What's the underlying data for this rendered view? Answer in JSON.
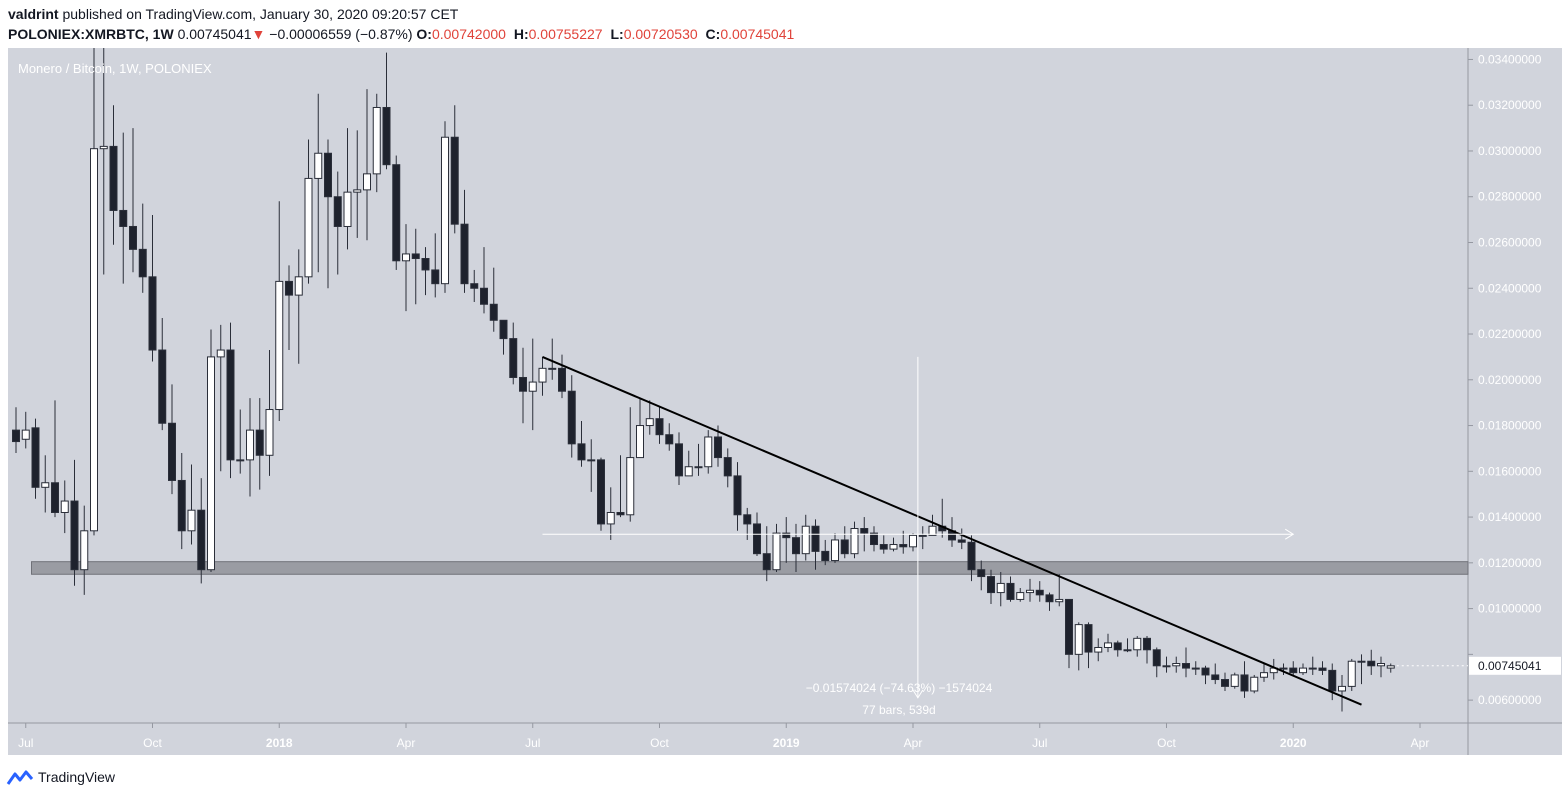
{
  "header": {
    "author": "valdrint",
    "published_text": "published on TradingView.com, January 30, 2020 09:20:57 CET",
    "symbol": "POLONIEX:XMRBTC,",
    "interval": "1W",
    "last_price": "0.00745041",
    "change_arrow": "▼",
    "change": "−0.00006559 (−0.87%)",
    "open_label": "O:",
    "open_value": "0.00742000",
    "high_label": "H:",
    "high_value": "0.00755227",
    "low_label": "L:",
    "low_value": "0.00720530",
    "close_label": "C:",
    "close_value": "0.00745041"
  },
  "footer": {
    "brand": "TradingView"
  },
  "colors": {
    "background": "#d1d4dc",
    "bull_body": "#ffffff",
    "bear_body": "#1e222d",
    "wick": "#2a2e39",
    "support_zone": "#9a9ca3",
    "trendline": "#000000",
    "price_tag": "#ffffff",
    "negative": "#e0433a"
  },
  "chart_data": {
    "type": "candlestick",
    "title": "Monero / Bitcoin, 1W, POLONIEX",
    "ylim": [
      0.005,
      0.0345
    ],
    "y_ticks": [
      0.034,
      0.032,
      0.03,
      0.028,
      0.026,
      0.024,
      0.022,
      0.02,
      0.018,
      0.016,
      0.014,
      0.012,
      0.01,
      0.008,
      0.006
    ],
    "y_tick_labels": [
      "0.03400000",
      "0.03200000",
      "0.03000000",
      "0.02800000",
      "0.02600000",
      "0.02400000",
      "0.02200000",
      "0.02000000",
      "0.01800000",
      "0.01600000",
      "0.01400000",
      "0.01200000",
      "0.01000000",
      "",
      "0.00600000"
    ],
    "x_tick_labels": [
      {
        "label": "Jul",
        "week": 1
      },
      {
        "label": "Oct",
        "week": 14
      },
      {
        "label": "2018",
        "week": 27
      },
      {
        "label": "Apr",
        "week": 40
      },
      {
        "label": "Jul",
        "week": 53
      },
      {
        "label": "Oct",
        "week": 66
      },
      {
        "label": "2019",
        "week": 79
      },
      {
        "label": "Apr",
        "week": 92
      },
      {
        "label": "Jul",
        "week": 105
      },
      {
        "label": "Oct",
        "week": 118
      },
      {
        "label": "2020",
        "week": 131
      },
      {
        "label": "Apr",
        "week": 144
      }
    ],
    "candles": [
      [
        0.0178,
        0.0173,
        0.0188,
        0.0168
      ],
      [
        0.0174,
        0.0178,
        0.0186,
        0.017
      ],
      [
        0.0179,
        0.0153,
        0.0183,
        0.0148
      ],
      [
        0.0153,
        0.0155,
        0.0167,
        0.0142
      ],
      [
        0.0155,
        0.0142,
        0.0191,
        0.014
      ],
      [
        0.0142,
        0.0147,
        0.0156,
        0.0133
      ],
      [
        0.0147,
        0.0117,
        0.0165,
        0.011
      ],
      [
        0.0117,
        0.0134,
        0.0145,
        0.0106
      ],
      [
        0.0134,
        0.0301,
        0.0345,
        0.0132
      ],
      [
        0.0301,
        0.0302,
        0.0345,
        0.0246
      ],
      [
        0.0302,
        0.0274,
        0.032,
        0.0259
      ],
      [
        0.0274,
        0.0267,
        0.0308,
        0.0242
      ],
      [
        0.0267,
        0.0257,
        0.031,
        0.0247
      ],
      [
        0.0257,
        0.0245,
        0.0277,
        0.0238
      ],
      [
        0.0245,
        0.0213,
        0.0272,
        0.0208
      ],
      [
        0.0213,
        0.0181,
        0.0227,
        0.0178
      ],
      [
        0.0181,
        0.0156,
        0.0198,
        0.015
      ],
      [
        0.0156,
        0.0134,
        0.0168,
        0.0126
      ],
      [
        0.0134,
        0.0143,
        0.0163,
        0.0128
      ],
      [
        0.0143,
        0.0117,
        0.0157,
        0.0111
      ],
      [
        0.0117,
        0.021,
        0.0222,
        0.0116
      ],
      [
        0.021,
        0.0213,
        0.0224,
        0.016
      ],
      [
        0.0213,
        0.0165,
        0.0225,
        0.0157
      ],
      [
        0.0165,
        0.0165,
        0.0187,
        0.0159
      ],
      [
        0.0165,
        0.0178,
        0.0192,
        0.0149
      ],
      [
        0.0178,
        0.0167,
        0.0192,
        0.0152
      ],
      [
        0.0167,
        0.0187,
        0.0213,
        0.0158
      ],
      [
        0.0187,
        0.0243,
        0.0278,
        0.0182
      ],
      [
        0.0243,
        0.0237,
        0.025,
        0.0213
      ],
      [
        0.0237,
        0.0245,
        0.0257,
        0.0207
      ],
      [
        0.0245,
        0.0288,
        0.0305,
        0.0242
      ],
      [
        0.0288,
        0.0299,
        0.0325,
        0.0247
      ],
      [
        0.0299,
        0.028,
        0.0305,
        0.024
      ],
      [
        0.028,
        0.0267,
        0.0291,
        0.0246
      ],
      [
        0.0267,
        0.0282,
        0.031,
        0.0257
      ],
      [
        0.0282,
        0.0283,
        0.0309,
        0.0262
      ],
      [
        0.0283,
        0.029,
        0.0327,
        0.0261
      ],
      [
        0.029,
        0.0319,
        0.0325,
        0.0282
      ],
      [
        0.0319,
        0.0294,
        0.0343,
        0.0292
      ],
      [
        0.0294,
        0.0252,
        0.0298,
        0.0248
      ],
      [
        0.0252,
        0.0255,
        0.0268,
        0.023
      ],
      [
        0.0255,
        0.0253,
        0.0266,
        0.0233
      ],
      [
        0.0253,
        0.0248,
        0.0258,
        0.0237
      ],
      [
        0.0248,
        0.0242,
        0.0264,
        0.0236
      ],
      [
        0.0242,
        0.0306,
        0.0313,
        0.0238
      ],
      [
        0.0306,
        0.0268,
        0.032,
        0.0264
      ],
      [
        0.0268,
        0.0242,
        0.0283,
        0.0238
      ],
      [
        0.0242,
        0.024,
        0.0248,
        0.0234
      ],
      [
        0.024,
        0.0233,
        0.0258,
        0.0229
      ],
      [
        0.0233,
        0.0226,
        0.0249,
        0.0221
      ],
      [
        0.0226,
        0.0218,
        0.0226,
        0.0211
      ],
      [
        0.0218,
        0.0201,
        0.0225,
        0.0198
      ],
      [
        0.0201,
        0.0195,
        0.0214,
        0.0181
      ],
      [
        0.0195,
        0.0199,
        0.0218,
        0.0178
      ],
      [
        0.0199,
        0.0205,
        0.021,
        0.0193
      ],
      [
        0.0205,
        0.0205,
        0.0218,
        0.02
      ],
      [
        0.0205,
        0.0195,
        0.0211,
        0.0192
      ],
      [
        0.0195,
        0.0172,
        0.0202,
        0.0166
      ],
      [
        0.0172,
        0.0165,
        0.0182,
        0.0162
      ],
      [
        0.0165,
        0.0165,
        0.0174,
        0.0151
      ],
      [
        0.0165,
        0.0137,
        0.0166,
        0.0134
      ],
      [
        0.0137,
        0.0142,
        0.0153,
        0.013
      ],
      [
        0.0142,
        0.0141,
        0.0167,
        0.014
      ],
      [
        0.0141,
        0.0166,
        0.0188,
        0.0138
      ],
      [
        0.0166,
        0.018,
        0.0192,
        0.017
      ],
      [
        0.018,
        0.0183,
        0.0191,
        0.0176
      ],
      [
        0.0183,
        0.0176,
        0.0188,
        0.0172
      ],
      [
        0.0176,
        0.0172,
        0.0181,
        0.0169
      ],
      [
        0.0172,
        0.0158,
        0.0177,
        0.0154
      ],
      [
        0.0158,
        0.0162,
        0.0169,
        0.0158
      ],
      [
        0.0162,
        0.0162,
        0.0172,
        0.0158
      ],
      [
        0.0162,
        0.0175,
        0.0178,
        0.0159
      ],
      [
        0.0175,
        0.0166,
        0.018,
        0.0162
      ],
      [
        0.0166,
        0.0158,
        0.017,
        0.0153
      ],
      [
        0.0158,
        0.0141,
        0.0164,
        0.0134
      ],
      [
        0.0141,
        0.0137,
        0.0144,
        0.013
      ],
      [
        0.0137,
        0.0124,
        0.0142,
        0.0123
      ],
      [
        0.0124,
        0.0117,
        0.0136,
        0.0112
      ],
      [
        0.0117,
        0.0133,
        0.0137,
        0.0116
      ],
      [
        0.0133,
        0.0131,
        0.014,
        0.012
      ],
      [
        0.0131,
        0.0124,
        0.0137,
        0.0116
      ],
      [
        0.0124,
        0.0136,
        0.0141,
        0.0121
      ],
      [
        0.0136,
        0.0125,
        0.0139,
        0.0117
      ],
      [
        0.0125,
        0.0121,
        0.013,
        0.0119
      ],
      [
        0.0121,
        0.013,
        0.0133,
        0.012
      ],
      [
        0.013,
        0.0124,
        0.0136,
        0.0122
      ],
      [
        0.0124,
        0.0135,
        0.0138,
        0.0122
      ],
      [
        0.0135,
        0.0133,
        0.014,
        0.0125
      ],
      [
        0.0133,
        0.0128,
        0.0136,
        0.0125
      ],
      [
        0.0128,
        0.0126,
        0.0132,
        0.0124
      ],
      [
        0.0126,
        0.0128,
        0.0131,
        0.0125
      ],
      [
        0.0128,
        0.0127,
        0.0134,
        0.0124
      ],
      [
        0.0127,
        0.0132,
        0.0133,
        0.0125
      ],
      [
        0.0132,
        0.0132,
        0.0136,
        0.0126
      ],
      [
        0.0132,
        0.0136,
        0.0141,
        0.0133
      ],
      [
        0.0136,
        0.0134,
        0.0148,
        0.0131
      ],
      [
        0.0134,
        0.013,
        0.014,
        0.0127
      ],
      [
        0.013,
        0.0129,
        0.0135,
        0.0126
      ],
      [
        0.0129,
        0.0117,
        0.0132,
        0.0112
      ],
      [
        0.0117,
        0.0114,
        0.0121,
        0.0108
      ],
      [
        0.0114,
        0.0107,
        0.0117,
        0.0102
      ],
      [
        0.0107,
        0.0111,
        0.0116,
        0.0101
      ],
      [
        0.0111,
        0.0104,
        0.0114,
        0.0103
      ],
      [
        0.0104,
        0.0107,
        0.0109,
        0.0103
      ],
      [
        0.0107,
        0.0108,
        0.0113,
        0.0103
      ],
      [
        0.0108,
        0.0106,
        0.0112,
        0.0103
      ],
      [
        0.0106,
        0.0103,
        0.0107,
        0.0099
      ],
      [
        0.0103,
        0.0104,
        0.0115,
        0.0101
      ],
      [
        0.0104,
        0.008,
        0.0104,
        0.0074
      ],
      [
        0.008,
        0.0093,
        0.0094,
        0.0073
      ],
      [
        0.0093,
        0.0081,
        0.0094,
        0.0074
      ],
      [
        0.0081,
        0.0083,
        0.0087,
        0.0077
      ],
      [
        0.0083,
        0.0085,
        0.0089,
        0.0081
      ],
      [
        0.0085,
        0.0082,
        0.0086,
        0.0079
      ],
      [
        0.0082,
        0.0082,
        0.0087,
        0.0081
      ],
      [
        0.0082,
        0.0087,
        0.0088,
        0.0079
      ],
      [
        0.0087,
        0.0082,
        0.0088,
        0.0076
      ],
      [
        0.0082,
        0.0075,
        0.0083,
        0.007
      ],
      [
        0.0075,
        0.0075,
        0.0079,
        0.0072
      ],
      [
        0.0075,
        0.0076,
        0.0079,
        0.0072
      ],
      [
        0.0076,
        0.0074,
        0.0083,
        0.007
      ],
      [
        0.0074,
        0.0074,
        0.0077,
        0.0071
      ],
      [
        0.0074,
        0.0071,
        0.0075,
        0.0067
      ],
      [
        0.0071,
        0.0069,
        0.0076,
        0.0067
      ],
      [
        0.0069,
        0.0066,
        0.0072,
        0.0064
      ],
      [
        0.0066,
        0.0071,
        0.0072,
        0.0065
      ],
      [
        0.0071,
        0.0064,
        0.0077,
        0.0061
      ],
      [
        0.0064,
        0.007,
        0.0071,
        0.0063
      ],
      [
        0.007,
        0.0072,
        0.0076,
        0.0068
      ],
      [
        0.0072,
        0.0074,
        0.0078,
        0.0069
      ],
      [
        0.0074,
        0.0074,
        0.0076,
        0.0071
      ],
      [
        0.0074,
        0.0072,
        0.0077,
        0.0071
      ],
      [
        0.0072,
        0.0074,
        0.0076,
        0.0071
      ],
      [
        0.0074,
        0.0074,
        0.0079,
        0.0071
      ],
      [
        0.0074,
        0.0073,
        0.0077,
        0.0071
      ],
      [
        0.0073,
        0.0064,
        0.0076,
        0.006
      ],
      [
        0.0064,
        0.0066,
        0.0071,
        0.0055
      ],
      [
        0.0066,
        0.0077,
        0.0078,
        0.0064
      ],
      [
        0.0077,
        0.0077,
        0.008,
        0.0067
      ],
      [
        0.0077,
        0.0075,
        0.0082,
        0.0071
      ],
      [
        0.0075,
        0.0076,
        0.0079,
        0.007
      ],
      [
        0.0074,
        0.0075,
        0.0076,
        0.0072
      ]
    ],
    "support_zone": {
      "from": 0.0115,
      "to": 0.01205,
      "start_week": 2
    },
    "trendline": {
      "start_week": 54,
      "start_price": 0.021,
      "end_week": 138,
      "end_price": 0.0058
    },
    "measure": {
      "start_week": 54,
      "end_week": 131,
      "ref_price": 0.01325,
      "vertical_week": 92.5,
      "v_top": 0.021,
      "v_bottom": 0.0061,
      "label_change": "−0.01574024 (−74.63%) −1574024",
      "label_span": "77 bars, 539d"
    },
    "last_price_tag": "0.00745041"
  }
}
